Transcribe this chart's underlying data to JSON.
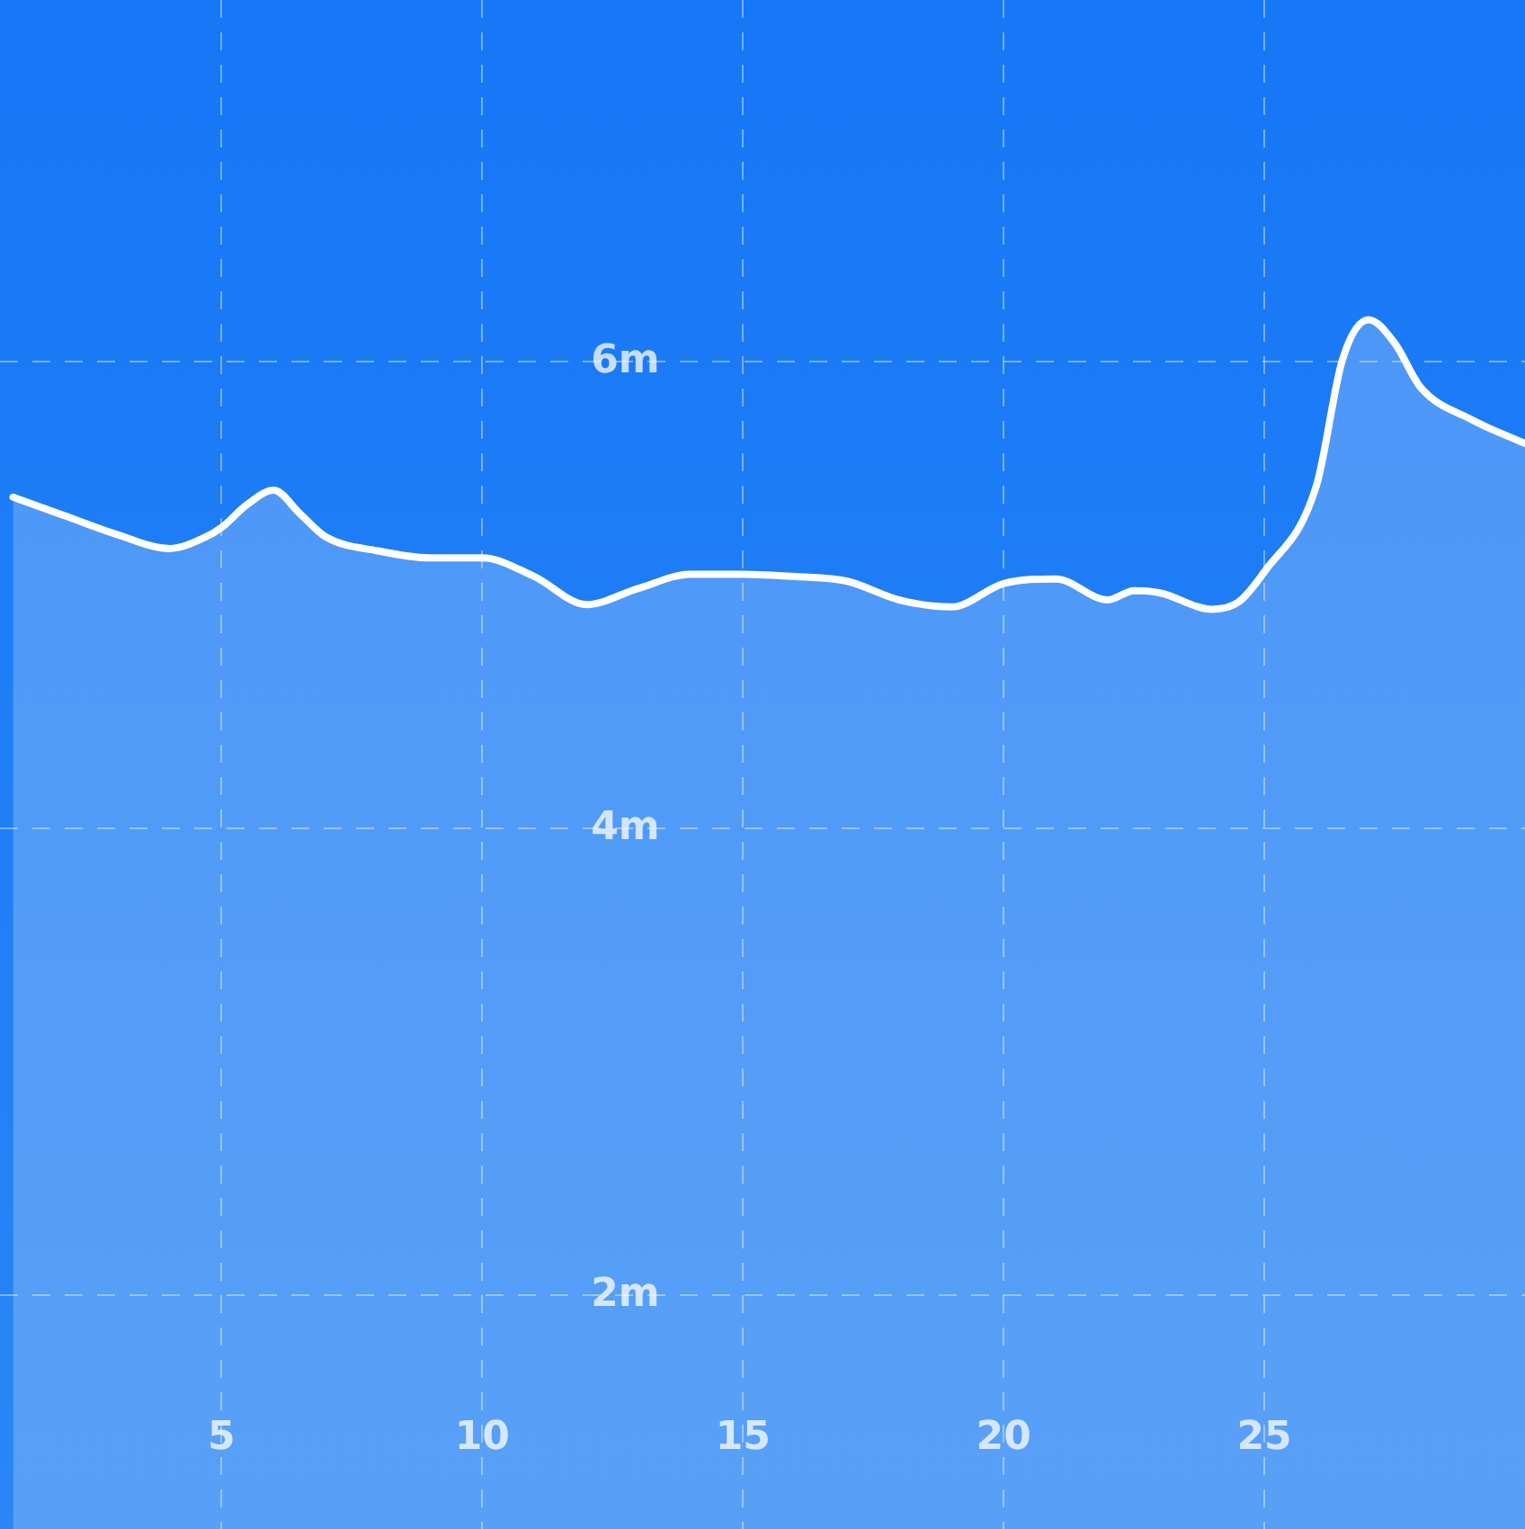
{
  "chart_data": {
    "type": "area",
    "x": [
      1,
      2,
      3,
      4,
      4.7,
      5,
      5.5,
      6,
      6.5,
      7,
      8,
      9,
      10,
      11,
      12,
      13,
      14,
      15,
      16,
      17,
      18,
      19,
      20,
      21,
      22,
      22.5,
      23,
      24,
      24.5,
      25,
      26,
      26.5,
      27,
      27.5,
      28,
      29,
      30
    ],
    "series": [
      {
        "color": "#ffffff",
        "values": [
          5.42,
          5.34,
          5.26,
          5.2,
          5.25,
          5.29,
          5.39,
          5.45,
          5.35,
          5.25,
          5.19,
          5.16,
          5.16,
          5.08,
          4.96,
          5.03,
          5.09,
          5.09,
          5.08,
          5.06,
          4.98,
          4.95,
          5.05,
          5.07,
          4.98,
          5.02,
          5.01,
          4.94,
          4.97,
          5.1,
          5.47,
          6.01,
          6.18,
          6.08,
          5.89,
          5.75,
          5.65
        ]
      }
    ],
    "xlim": [
      0.75,
      30
    ],
    "xticks": [
      5,
      10,
      15,
      20,
      25
    ],
    "ylim": [
      1,
      7.55
    ],
    "yticks": [
      {
        "value": 2,
        "label": "2m"
      },
      {
        "value": 4,
        "label": "4m"
      },
      {
        "value": 6,
        "label": "6m"
      }
    ],
    "grid": true,
    "legend": false,
    "marker": "none",
    "line_style": "solid"
  }
}
